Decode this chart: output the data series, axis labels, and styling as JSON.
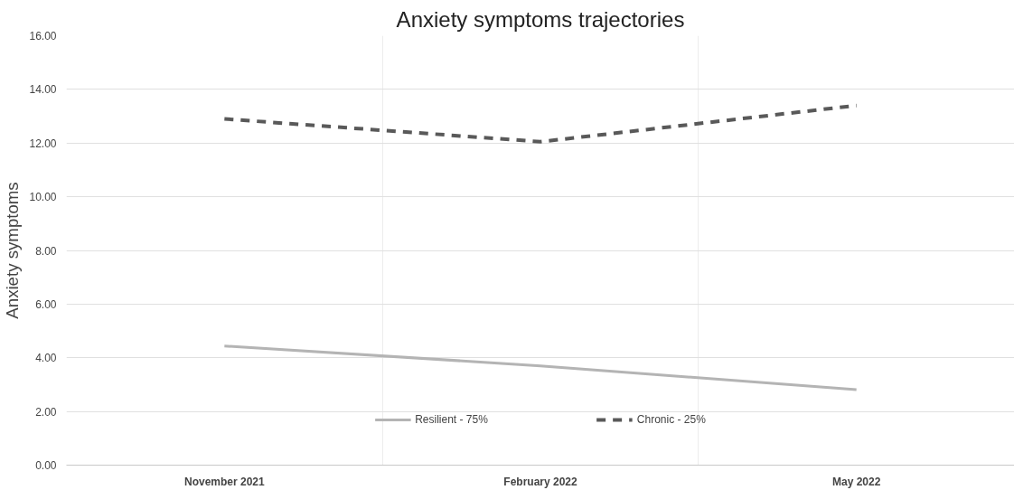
{
  "chart_data": {
    "type": "line",
    "title": "Anxiety symptoms trajectories",
    "ylabel": "Anxiety symptoms",
    "categories": [
      "November 2021",
      "February 2022",
      "May 2022"
    ],
    "series": [
      {
        "name": "Resilient - 75%",
        "color": "#b4b4b4",
        "values": [
          4.44,
          3.7,
          2.81
        ],
        "line_style": "solid"
      },
      {
        "name": "Chronic - 25%",
        "color": "#595959",
        "values": [
          12.9,
          12.05,
          13.4
        ],
        "line_style": "dashed"
      }
    ],
    "ylim": [
      0,
      16
    ],
    "yticks": [
      {
        "value": 0,
        "label": "0.00"
      },
      {
        "value": 2,
        "label": "2.00"
      },
      {
        "value": 4,
        "label": "4.00"
      },
      {
        "value": 6,
        "label": "6.00"
      },
      {
        "value": 8,
        "label": "8.00"
      },
      {
        "value": 10,
        "label": "10.00"
      },
      {
        "value": 12,
        "label": "12.00"
      },
      {
        "value": 14,
        "label": "14.00"
      },
      {
        "value": 16,
        "label": "16.00"
      }
    ],
    "grid": true,
    "legend": "bottom",
    "marker": "none"
  }
}
